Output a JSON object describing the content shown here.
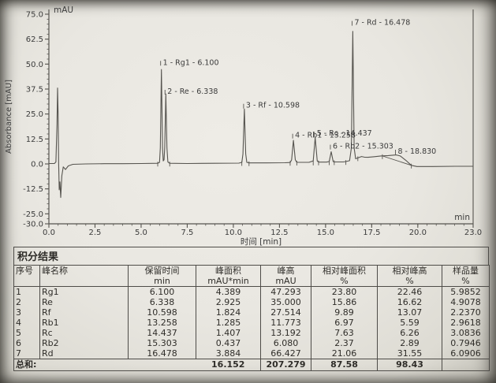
{
  "colors": {
    "paper": "#e9e7e1",
    "ink": "#3b3b3b",
    "trace": "#56544f"
  },
  "chart_data": {
    "type": "line",
    "title": "",
    "xlabel": "时间 [min]",
    "ylabel": "Absorbance [mAU]",
    "x_unit_inside": "min",
    "y_unit_inside": "mAU",
    "xlim": [
      0,
      23
    ],
    "ylim": [
      -30,
      75
    ],
    "x_ticks": [
      "0.0",
      "2.5",
      "5.0",
      "7.5",
      "10.0",
      "12.5",
      "15.0",
      "17.5",
      "20.0",
      "23.0"
    ],
    "y_ticks": [
      "75.0",
      "62.5",
      "50.0",
      "37.5",
      "25.0",
      "12.5",
      "0.0",
      "-12.5",
      "-25.0",
      "-30.0"
    ],
    "x_minor_step": 0.5,
    "y_minor_step": 2.5,
    "grid": false,
    "peaks": [
      {
        "n": 1,
        "name": "Rg1",
        "rt": 6.1,
        "height_mAU": 47.293,
        "label": "1 - Rg1 - 6.100",
        "label_mAU": 52
      },
      {
        "n": 2,
        "name": "Re",
        "rt": 6.338,
        "height_mAU": 35.0,
        "label": "2 - Re - 6.338",
        "label_mAU": 37.5
      },
      {
        "n": 3,
        "name": "Rf",
        "rt": 10.598,
        "height_mAU": 27.514,
        "label": "3 - Rf - 10.598",
        "label_mAU": 30.5
      },
      {
        "n": 4,
        "name": "Rb1",
        "rt": 13.258,
        "height_mAU": 11.773,
        "label": "4 - Rb1 - 13.258",
        "label_mAU": 15.5
      },
      {
        "n": 5,
        "name": "Rc",
        "rt": 14.437,
        "height_mAU": 13.192,
        "label": "5 - Rc - 14.437",
        "label_mAU": 16.5
      },
      {
        "n": 6,
        "name": "Rb2",
        "rt": 15.303,
        "height_mAU": 6.08,
        "label": "6 - Rb2 - 15.303",
        "label_mAU": 10
      },
      {
        "n": 7,
        "name": "Rd",
        "rt": 16.478,
        "height_mAU": 66.427,
        "label": "7 - Rd - 16.478",
        "label_mAU": 72
      },
      {
        "n": 8,
        "name": "",
        "rt": 18.83,
        "height_mAU": 4.5,
        "label": "8 - 18.830",
        "label_mAU": 7.5
      }
    ],
    "trace": [
      [
        0,
        0.2
      ],
      [
        0.3,
        0.2
      ],
      [
        0.38,
        1
      ],
      [
        0.44,
        20
      ],
      [
        0.47,
        38
      ],
      [
        0.5,
        25
      ],
      [
        0.53,
        0
      ],
      [
        0.56,
        -13
      ],
      [
        0.6,
        -9
      ],
      [
        0.64,
        -16.8
      ],
      [
        0.7,
        -6
      ],
      [
        0.78,
        -1.5
      ],
      [
        0.9,
        -2.8
      ],
      [
        1.05,
        -1
      ],
      [
        1.3,
        -0.2
      ],
      [
        2,
        0
      ],
      [
        3,
        0.1
      ],
      [
        4,
        0.1
      ],
      [
        5,
        0.2
      ],
      [
        5.9,
        0.3
      ],
      [
        6.0,
        0.8
      ],
      [
        6.04,
        8
      ],
      [
        6.1,
        47.3
      ],
      [
        6.16,
        8
      ],
      [
        6.2,
        1.5
      ],
      [
        6.24,
        2
      ],
      [
        6.28,
        8
      ],
      [
        6.338,
        35
      ],
      [
        6.4,
        8
      ],
      [
        6.45,
        1
      ],
      [
        6.55,
        0.3
      ],
      [
        7.5,
        0.2
      ],
      [
        9,
        0.3
      ],
      [
        10.3,
        0.4
      ],
      [
        10.46,
        0.8
      ],
      [
        10.52,
        5
      ],
      [
        10.598,
        27.5
      ],
      [
        10.67,
        5
      ],
      [
        10.73,
        0.8
      ],
      [
        10.85,
        0.5
      ],
      [
        11.8,
        0.5
      ],
      [
        12.8,
        0.6
      ],
      [
        13.08,
        0.7
      ],
      [
        13.16,
        2
      ],
      [
        13.258,
        11.8
      ],
      [
        13.36,
        2
      ],
      [
        13.44,
        0.8
      ],
      [
        14.1,
        0.8
      ],
      [
        14.33,
        1.5
      ],
      [
        14.437,
        13.2
      ],
      [
        14.55,
        1.5
      ],
      [
        14.62,
        0.9
      ],
      [
        15.05,
        0.9
      ],
      [
        15.2,
        1.2
      ],
      [
        15.303,
        6.1
      ],
      [
        15.41,
        1.2
      ],
      [
        15.47,
        1.0
      ],
      [
        15.95,
        1.0
      ],
      [
        16.1,
        1.2
      ],
      [
        16.3,
        1.6
      ],
      [
        16.4,
        8
      ],
      [
        16.478,
        66.4
      ],
      [
        16.55,
        8
      ],
      [
        16.63,
        2.6
      ],
      [
        16.75,
        3.0
      ],
      [
        16.95,
        3.7
      ],
      [
        17.1,
        3.4
      ],
      [
        17.3,
        3.3
      ],
      [
        17.6,
        3.6
      ],
      [
        18.0,
        4.0
      ],
      [
        18.4,
        4.2
      ],
      [
        18.83,
        4.5
      ],
      [
        19.05,
        4.0
      ],
      [
        19.35,
        1.8
      ],
      [
        19.65,
        -0.7
      ],
      [
        19.95,
        -1.3
      ],
      [
        20.8,
        -1.3
      ],
      [
        22,
        -1.2
      ],
      [
        23,
        -1.2
      ]
    ],
    "baseline_segment": [
      [
        18.08,
        4.0
      ],
      [
        19.65,
        -0.7
      ]
    ],
    "base_ticks": [
      [
        5.9,
        0.3
      ],
      [
        6.55,
        0.3
      ],
      [
        10.46,
        0.6
      ],
      [
        10.85,
        0.5
      ],
      [
        13.08,
        0.7
      ],
      [
        13.44,
        0.8
      ],
      [
        14.33,
        0.85
      ],
      [
        14.62,
        0.9
      ],
      [
        15.2,
        1.0
      ],
      [
        15.47,
        1.0
      ],
      [
        16.1,
        1.1
      ],
      [
        16.75,
        3.0
      ],
      [
        18.08,
        4.0
      ],
      [
        19.65,
        -0.7
      ]
    ]
  },
  "table": {
    "title": "积分结果",
    "columns": [
      {
        "label": "序号",
        "unit": ""
      },
      {
        "label": "峰名称",
        "unit": ""
      },
      {
        "label": "保留时间",
        "unit": "min"
      },
      {
        "label": "峰面积",
        "unit": "mAU*min"
      },
      {
        "label": "峰高",
        "unit": "mAU"
      },
      {
        "label": "相对峰面积",
        "unit": "%"
      },
      {
        "label": "相对峰高",
        "unit": "%"
      },
      {
        "label": "样品量",
        "unit": "%"
      }
    ],
    "rows": [
      [
        "1",
        "Rg1",
        "6.100",
        "4.389",
        "47.293",
        "23.80",
        "22.46",
        "5.9852"
      ],
      [
        "2",
        "Re",
        "6.338",
        "2.925",
        "35.000",
        "15.86",
        "16.62",
        "4.9078"
      ],
      [
        "3",
        "Rf",
        "10.598",
        "1.824",
        "27.514",
        "9.89",
        "13.07",
        "2.2370"
      ],
      [
        "4",
        "Rb1",
        "13.258",
        "1.285",
        "11.773",
        "6.97",
        "5.59",
        "2.9618"
      ],
      [
        "5",
        "Rc",
        "14.437",
        "1.407",
        "13.192",
        "7.63",
        "6.26",
        "3.0836"
      ],
      [
        "6",
        "Rb2",
        "15.303",
        "0.437",
        "6.080",
        "2.37",
        "2.89",
        "0.7946"
      ],
      [
        "7",
        "Rd",
        "16.478",
        "3.884",
        "66.427",
        "21.06",
        "31.55",
        "6.0906"
      ]
    ],
    "total_row": {
      "label": "总和:",
      "values": [
        "16.152",
        "207.279",
        "87.58",
        "98.43",
        ""
      ]
    }
  }
}
